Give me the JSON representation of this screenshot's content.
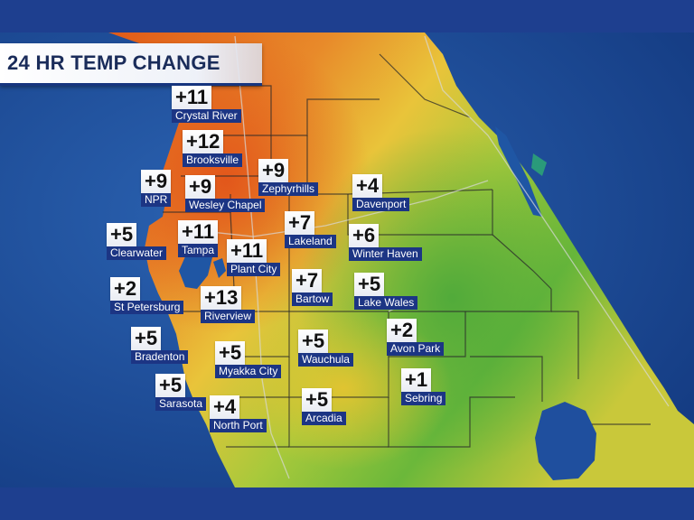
{
  "title": "24 HR TEMP CHANGE",
  "colors": {
    "water": "#1c4f9c",
    "frame": "#1e3f8f",
    "label_bg": "#1c3584",
    "warm": "#e06a1c",
    "mild": "#e8c030",
    "cool": "#5fb03a"
  },
  "cities": [
    {
      "name": "Crystal River",
      "change": "+11"
    },
    {
      "name": "Brooksville",
      "change": "+12"
    },
    {
      "name": "NPR",
      "change": "+9"
    },
    {
      "name": "Wesley Chapel",
      "change": "+9"
    },
    {
      "name": "Zephyrhills",
      "change": "+9"
    },
    {
      "name": "Davenport",
      "change": "+4"
    },
    {
      "name": "Clearwater",
      "change": "+5"
    },
    {
      "name": "Tampa",
      "change": "+11"
    },
    {
      "name": "Lakeland",
      "change": "+7"
    },
    {
      "name": "Winter Haven",
      "change": "+6"
    },
    {
      "name": "Plant City",
      "change": "+11"
    },
    {
      "name": "St Petersburg",
      "change": "+2"
    },
    {
      "name": "Bartow",
      "change": "+7"
    },
    {
      "name": "Lake Wales",
      "change": "+5"
    },
    {
      "name": "Riverview",
      "change": "+13"
    },
    {
      "name": "Avon Park",
      "change": "+2"
    },
    {
      "name": "Bradenton",
      "change": "+5"
    },
    {
      "name": "Myakka City",
      "change": "+5"
    },
    {
      "name": "Wauchula",
      "change": "+5"
    },
    {
      "name": "Sebring",
      "change": "+1"
    },
    {
      "name": "Sarasota",
      "change": "+5"
    },
    {
      "name": "North Port",
      "change": "+4"
    },
    {
      "name": "Arcadia",
      "change": "+5"
    }
  ]
}
